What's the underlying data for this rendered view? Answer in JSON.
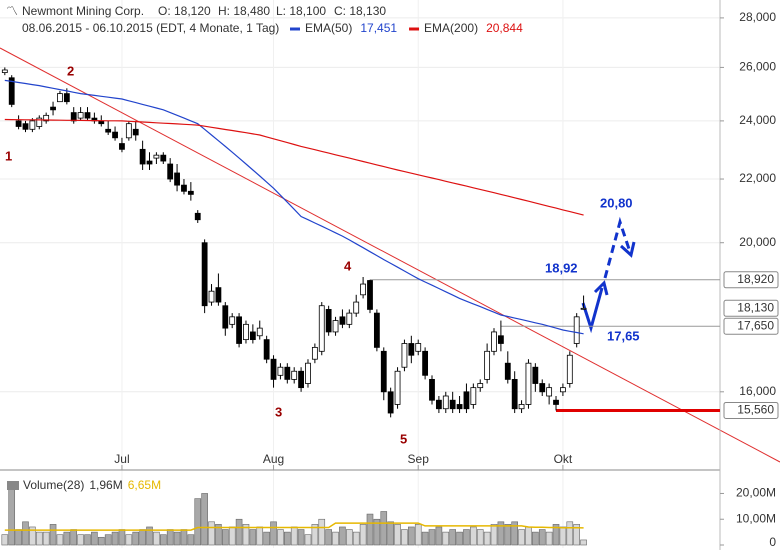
{
  "chart_data": {
    "type": "candlestick",
    "title": "Newmont Mining Corp.",
    "ohlc_labels": [
      "O: 18,120",
      "H: 18,480",
      "L: 18,100",
      "C: 18,130"
    ],
    "subtitle": "08.06.2015 - 06.10.2015 (EDT, 4 Monate, 1 Tag)",
    "log_scale": true,
    "grid": true,
    "ylim": [
      14340,
      28760
    ],
    "yticks": [
      {
        "value": 16000,
        "label": "16,000"
      },
      {
        "value": 20000,
        "label": "20,000"
      },
      {
        "value": 22000,
        "label": "22,000"
      },
      {
        "value": 24000,
        "label": "24,000"
      },
      {
        "value": 26000,
        "label": "26,000"
      },
      {
        "value": 28000,
        "label": "28,000"
      }
    ],
    "xlim": [
      -0.7,
      103.8
    ],
    "xticks": [
      {
        "value": 17,
        "label": "Jul"
      },
      {
        "value": 39,
        "label": "Aug"
      },
      {
        "value": 60,
        "label": "Sep"
      },
      {
        "value": 81,
        "label": "Okt"
      }
    ],
    "price_markers": [
      {
        "value": 18920,
        "label": "18,920",
        "line_from": 53,
        "line_color": "#999999"
      },
      {
        "value": 18130,
        "label": "18,130"
      },
      {
        "value": 17650,
        "label": "17,650",
        "line_from": 72,
        "line_color": "#999999"
      },
      {
        "value": 15560,
        "label": "15,560",
        "line_from": 80,
        "line_color": "#e00000"
      }
    ],
    "candles": [
      [
        25800,
        26000,
        25700,
        25900
      ],
      [
        25600,
        25700,
        24500,
        24600
      ],
      [
        24000,
        24200,
        23700,
        23800
      ],
      [
        23900,
        24000,
        23600,
        23700
      ],
      [
        23700,
        24100,
        23600,
        24000
      ],
      [
        23800,
        24200,
        23700,
        24100
      ],
      [
        24000,
        24300,
        23900,
        24200
      ],
      [
        24500,
        24700,
        24200,
        24400
      ],
      [
        24700,
        25100,
        24700,
        25000
      ],
      [
        25000,
        25200,
        24600,
        24700
      ],
      [
        24300,
        24500,
        23900,
        24000
      ],
      [
        24100,
        24500,
        24000,
        24300
      ],
      [
        24300,
        24500,
        24000,
        24100
      ],
      [
        24100,
        24300,
        23900,
        24000
      ],
      [
        24000,
        24200,
        23800,
        23900
      ],
      [
        23700,
        24000,
        23500,
        23600
      ],
      [
        23600,
        23800,
        23300,
        23400
      ],
      [
        23200,
        23400,
        22900,
        23000
      ],
      [
        23400,
        24000,
        23300,
        23900
      ],
      [
        23700,
        24000,
        23300,
        23500
      ],
      [
        23000,
        23300,
        22300,
        22500
      ],
      [
        22600,
        22900,
        22300,
        22500
      ],
      [
        22700,
        22900,
        22500,
        22800
      ],
      [
        22800,
        22900,
        22500,
        22600
      ],
      [
        22500,
        22700,
        21900,
        22000
      ],
      [
        22200,
        22500,
        21600,
        21800
      ],
      [
        21800,
        22000,
        21500,
        21600
      ],
      [
        21600,
        21900,
        21300,
        21500
      ],
      [
        20900,
        21000,
        20600,
        20700
      ],
      [
        20000,
        20100,
        18000,
        18200
      ],
      [
        18300,
        18800,
        18200,
        18600
      ],
      [
        18700,
        19100,
        18200,
        18300
      ],
      [
        18200,
        18300,
        17400,
        17600
      ],
      [
        17700,
        18000,
        17600,
        17900
      ],
      [
        17900,
        18000,
        17100,
        17200
      ],
      [
        17300,
        17800,
        17200,
        17700
      ],
      [
        17500,
        17700,
        17200,
        17300
      ],
      [
        17400,
        17800,
        17300,
        17600
      ],
      [
        17300,
        17400,
        16700,
        16800
      ],
      [
        16800,
        16900,
        16100,
        16300
      ],
      [
        16400,
        16700,
        16300,
        16600
      ],
      [
        16600,
        16700,
        16200,
        16300
      ],
      [
        16300,
        16600,
        16200,
        16500
      ],
      [
        16500,
        16600,
        16000,
        16100
      ],
      [
        16200,
        16800,
        16100,
        16700
      ],
      [
        16800,
        17200,
        16700,
        17100
      ],
      [
        17000,
        18300,
        16900,
        18200
      ],
      [
        18100,
        18200,
        17400,
        17500
      ],
      [
        17500,
        17900,
        17400,
        17800
      ],
      [
        17900,
        18100,
        17600,
        17700
      ],
      [
        17700,
        18100,
        17600,
        18000
      ],
      [
        18000,
        18500,
        17900,
        18300
      ],
      [
        18500,
        19000,
        18400,
        18800
      ],
      [
        18900,
        18920,
        18000,
        18100
      ],
      [
        18000,
        18100,
        17000,
        17100
      ],
      [
        17000,
        17100,
        15800,
        16000
      ],
      [
        16000,
        16100,
        15400,
        15500
      ],
      [
        15700,
        16600,
        15600,
        16500
      ],
      [
        16600,
        17300,
        16500,
        17200
      ],
      [
        17200,
        17400,
        16700,
        16900
      ],
      [
        17000,
        17300,
        16900,
        17200
      ],
      [
        17000,
        17100,
        16300,
        16400
      ],
      [
        16300,
        16400,
        15700,
        15800
      ],
      [
        15800,
        15900,
        15500,
        15600
      ],
      [
        15600,
        16000,
        15500,
        15900
      ],
      [
        15800,
        16000,
        15500,
        15600
      ],
      [
        15700,
        15900,
        15500,
        15600
      ],
      [
        16000,
        16200,
        15500,
        15600
      ],
      [
        15700,
        16200,
        15600,
        16100
      ],
      [
        16100,
        16300,
        16000,
        16200
      ],
      [
        16300,
        17200,
        16200,
        17000
      ],
      [
        17000,
        17600,
        16900,
        17500
      ],
      [
        17400,
        17800,
        17000,
        17200
      ],
      [
        16700,
        17000,
        16200,
        16300
      ],
      [
        16300,
        16500,
        15500,
        15600
      ],
      [
        15600,
        15800,
        15500,
        15700
      ],
      [
        15700,
        16800,
        15600,
        16700
      ],
      [
        16600,
        16700,
        16000,
        16200
      ],
      [
        16200,
        16300,
        15900,
        16000
      ],
      [
        15900,
        16200,
        15700,
        16100
      ],
      [
        15800,
        15900,
        15560,
        15700
      ],
      [
        16000,
        16200,
        15900,
        16100
      ],
      [
        16200,
        17000,
        16100,
        16900
      ],
      [
        17200,
        18000,
        17100,
        17900
      ],
      [
        18120,
        18480,
        18100,
        18130
      ]
    ],
    "series": [
      {
        "name": "EMA(50)",
        "color": "#2244cc",
        "last_label": "17,451",
        "values": [
          25500,
          25460,
          25420,
          25380,
          25340,
          25300,
          25250,
          25200,
          25150,
          25100,
          25050,
          25000,
          24967,
          24933,
          24900,
          24867,
          24833,
          24800,
          24733,
          24667,
          24600,
          24533,
          24467,
          24400,
          24300,
          24200,
          24100,
          24000,
          23900,
          23700,
          23500,
          23300,
          23100,
          22900,
          22700,
          22500,
          22300,
          22100,
          21900,
          21700,
          21475,
          21250,
          21025,
          20800,
          20700,
          20600,
          20500,
          20400,
          20300,
          20200,
          20083,
          19967,
          19850,
          19733,
          19617,
          19500,
          19390,
          19280,
          19170,
          19060,
          18950,
          18858,
          18767,
          18675,
          18583,
          18492,
          18400,
          18325,
          18250,
          18175,
          18100,
          18025,
          17950,
          17908,
          17867,
          17825,
          17783,
          17742,
          17700,
          17650,
          17600,
          17550,
          17517,
          17484,
          17451
        ]
      },
      {
        "name": "EMA(200)",
        "color": "#dd1111",
        "last_label": "20,844",
        "values": [
          24050,
          24047,
          24044,
          24041,
          24038,
          24035,
          24032,
          24029,
          24026,
          24023,
          24020,
          24017,
          24014,
          24011,
          24008,
          24005,
          24002,
          24000,
          23986,
          23973,
          23959,
          23945,
          23932,
          23918,
          23905,
          23891,
          23877,
          23864,
          23850,
          23811,
          23772,
          23733,
          23694,
          23656,
          23617,
          23578,
          23539,
          23500,
          23433,
          23367,
          23300,
          23233,
          23167,
          23100,
          23043,
          22986,
          22929,
          22871,
          22814,
          22757,
          22700,
          22643,
          22586,
          22529,
          22471,
          22414,
          22357,
          22300,
          22247,
          22193,
          22140,
          22087,
          22033,
          21980,
          21927,
          21873,
          21820,
          21767,
          21713,
          21660,
          21607,
          21553,
          21500,
          21445,
          21391,
          21336,
          21281,
          21227,
          21172,
          21117,
          21063,
          21008,
          20953,
          20899,
          20844
        ]
      }
    ],
    "annotations": [
      "1",
      "2",
      "3",
      "4",
      "5",
      "18,92",
      "20,80",
      "17,65"
    ],
    "volume": {
      "name": "Volume(28)",
      "last_label": "1,96M",
      "ma_label": "6,65M",
      "ma_color": "#e6b800",
      "color": "#a8a8a8",
      "ylim": [
        0,
        26
      ],
      "yticks": [
        {
          "value": 0,
          "label": "0"
        },
        {
          "value": 10,
          "label": "10,00M"
        },
        {
          "value": 20,
          "label": "20,00M"
        }
      ],
      "values": [
        4,
        22,
        6,
        9,
        7,
        5,
        5,
        8,
        4,
        5,
        6,
        4,
        4,
        5,
        3,
        4,
        5,
        6,
        4,
        5,
        6,
        7,
        5,
        4,
        6,
        5,
        6,
        4,
        18,
        20,
        9,
        8,
        6,
        7,
        10,
        8,
        6,
        7,
        5,
        9,
        6,
        5,
        7,
        6,
        4,
        8,
        10,
        6,
        5,
        7,
        6,
        5,
        8,
        12,
        10,
        13,
        9,
        8,
        6,
        7,
        8,
        5,
        6,
        7,
        5,
        6,
        5,
        6,
        7,
        6,
        5,
        8,
        9,
        8,
        9,
        6,
        7,
        5,
        6,
        5,
        8,
        7,
        9,
        8,
        1.96
      ],
      "ma_values": [
        5.8,
        5.8,
        5.8,
        5.8,
        5.8,
        5.8,
        5.8,
        5.8,
        5.8,
        5.8,
        5.8,
        5.8,
        5.8,
        5.8,
        5.8,
        5.8,
        5.8,
        5.8,
        5.8,
        5.8,
        5.8,
        5.8,
        5.8,
        5.8,
        5.8,
        5.8,
        5.8,
        5.8,
        6.8,
        6.8,
        6.8,
        6.8,
        6.8,
        6.8,
        6.8,
        6.8,
        6.8,
        6.8,
        6.8,
        6.8,
        6.8,
        6.8,
        6.8,
        6.8,
        6.8,
        6.8,
        6.8,
        6.8,
        8.5,
        8.5,
        8.5,
        8.5,
        8.5,
        8.5,
        8.5,
        8.5,
        8.5,
        8.5,
        8.5,
        8.5,
        8.5,
        7.4,
        7.4,
        7.4,
        7.4,
        7.4,
        7.4,
        7.4,
        7.4,
        7.4,
        7.4,
        7.4,
        7.4,
        7.4,
        7.4,
        7.4,
        7.0,
        6.9,
        6.9,
        6.8,
        6.8,
        6.7,
        6.7,
        6.7,
        6.65
      ]
    }
  }
}
